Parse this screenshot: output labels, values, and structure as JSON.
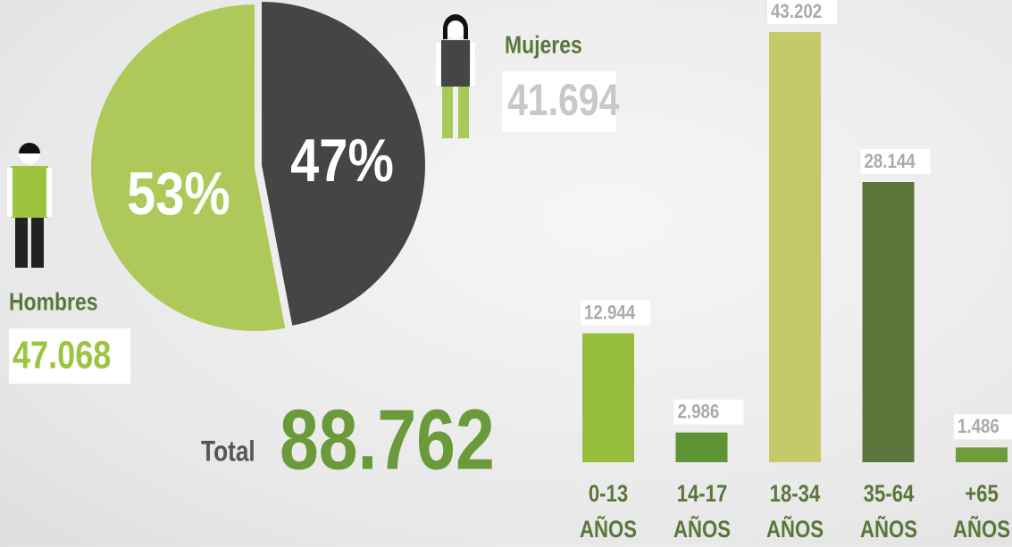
{
  "chart_data": [
    {
      "type": "pie",
      "categories": [
        "Hombres",
        "Mujeres"
      ],
      "values": [
        53,
        47
      ],
      "value_labels": [
        "53%",
        "47%"
      ],
      "colors": [
        "#afc85a",
        "#454545"
      ],
      "counts": [
        47068,
        41694
      ],
      "count_labels": [
        "47.068",
        "41.694"
      ],
      "total_title": "Total",
      "total": 88762,
      "total_label": "88.762"
    },
    {
      "type": "bar",
      "categories": [
        "0-13 AÑOS",
        "14-17 AÑOS",
        "18-34 AÑOS",
        "35-64 AÑOS",
        "+65 AÑOS"
      ],
      "values": [
        12944,
        2986,
        43202,
        28144,
        1486
      ],
      "value_labels": [
        "12.944",
        "2.986",
        "43.202",
        "28.144",
        "1.486"
      ],
      "colors": [
        "#95be3c",
        "#5d9436",
        "#c4c96a",
        "#5b763a",
        "#6e9e3c"
      ]
    }
  ]
}
